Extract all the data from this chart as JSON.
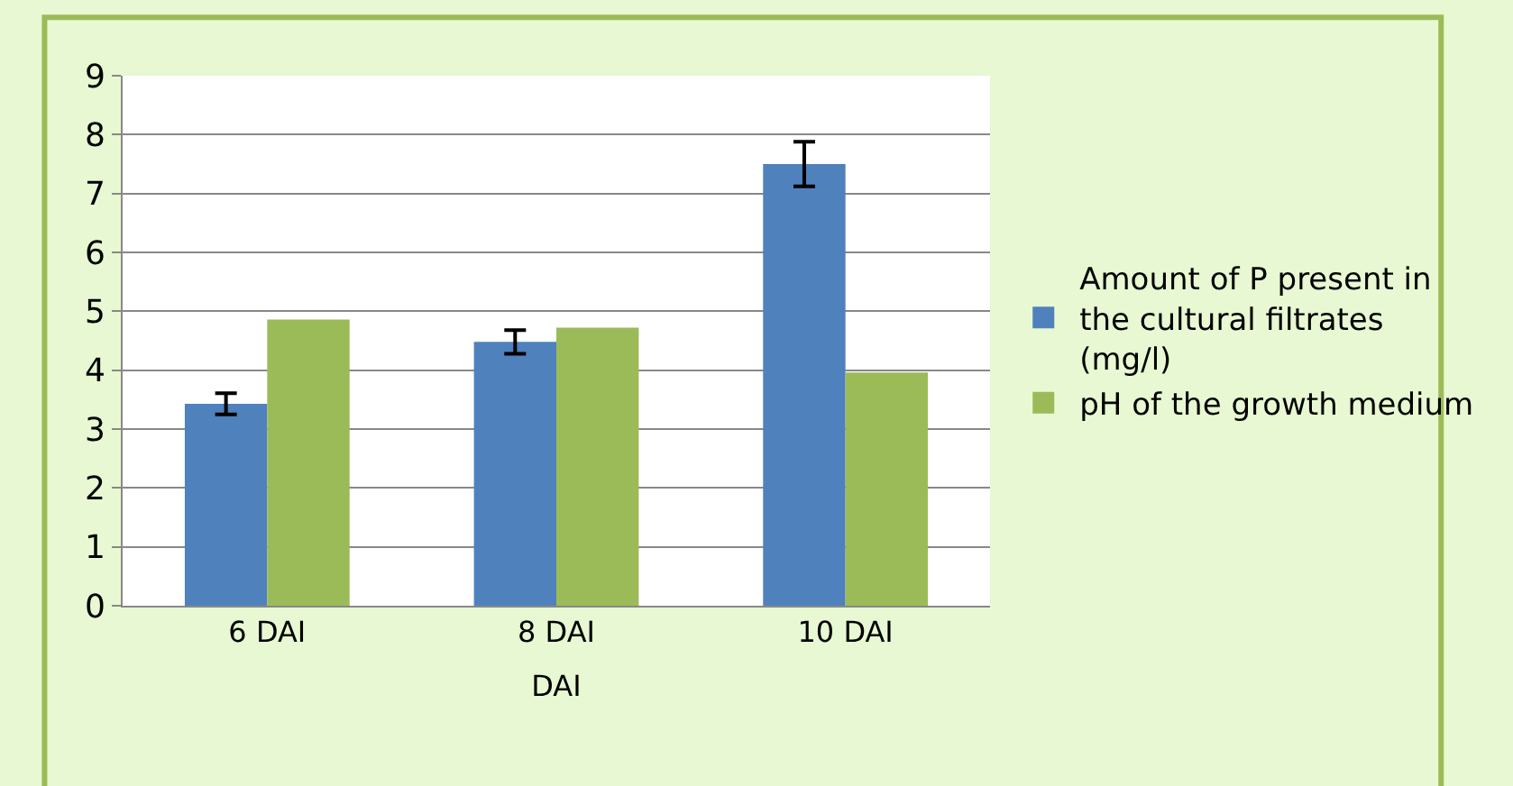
{
  "chart_data": {
    "type": "bar",
    "xlabel": "DAI",
    "categories": [
      "6 DAI",
      "8 DAI",
      "10 DAI"
    ],
    "series": [
      {
        "name": "Amount of P present in the cultural filtrates (mg/l)",
        "color": "#4f81bd",
        "values": [
          3.43,
          4.48,
          7.5
        ],
        "errors": [
          0.18,
          0.2,
          0.38
        ]
      },
      {
        "name": "pH of the growth medium",
        "color": "#9bbb59",
        "values": [
          4.86,
          4.72,
          3.96
        ]
      }
    ],
    "ylim": [
      0,
      9
    ],
    "yticks": [
      0,
      1,
      2,
      3,
      4,
      5,
      6,
      7,
      8,
      9
    ],
    "grid": "y",
    "legend": "right"
  }
}
